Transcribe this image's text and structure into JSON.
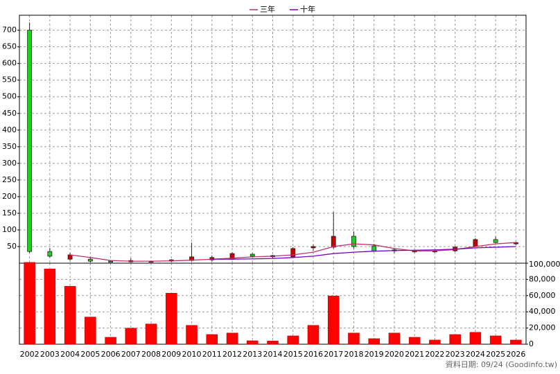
{
  "chart_data": [
    {
      "type": "candlestick",
      "categories": [
        "2002",
        "2003",
        "2004",
        "2005",
        "2006",
        "2007",
        "2008",
        "2009",
        "2010",
        "2011",
        "2012",
        "2013",
        "2014",
        "2015",
        "2016",
        "2017",
        "2018",
        "2019",
        "2020",
        "2021",
        "2022",
        "2023",
        "2024",
        "2025",
        "2026"
      ],
      "open": [
        700,
        35,
        12,
        12,
        6,
        4,
        5,
        6,
        8,
        10,
        12,
        27,
        19,
        19,
        46,
        48,
        81,
        52,
        37,
        35,
        35,
        37,
        50,
        71,
        58
      ],
      "high": [
        723,
        46,
        31,
        19,
        8,
        15,
        8,
        12,
        62,
        23,
        33,
        30,
        25,
        48,
        56,
        154,
        96,
        58,
        46,
        40,
        40,
        52,
        75,
        80,
        64
      ],
      "low": [
        31,
        17,
        8,
        2,
        3,
        2,
        3,
        4,
        6,
        6,
        10,
        19,
        16,
        16,
        37,
        44,
        44,
        34,
        30,
        32,
        32,
        34,
        48,
        60,
        55
      ],
      "close": [
        35,
        21,
        25,
        6,
        5,
        8,
        6,
        10,
        19,
        17,
        29,
        21,
        23,
        44,
        50,
        81,
        50,
        37,
        40,
        37,
        37,
        48,
        71,
        62,
        62
      ],
      "up_color": "#cc0000",
      "down_color": "#22cc22",
      "series": [
        {
          "name": "三年",
          "color": "#c0306a",
          "values": [
            null,
            null,
            25,
            17,
            8,
            6,
            6,
            7,
            9,
            12,
            15,
            19,
            21,
            25,
            33,
            50,
            58,
            55,
            44,
            37,
            37,
            41,
            50,
            58,
            62
          ]
        },
        {
          "name": "十年",
          "color": "#7a00c0",
          "values": [
            null,
            null,
            null,
            null,
            null,
            null,
            null,
            null,
            null,
            12,
            12,
            13,
            14,
            17,
            21,
            29,
            33,
            36,
            38,
            39,
            40,
            42,
            46,
            48,
            50
          ]
        }
      ],
      "ylim": [
        0,
        745
      ],
      "yticks": [
        50,
        100,
        150,
        200,
        250,
        300,
        350,
        400,
        450,
        500,
        550,
        600,
        650,
        700
      ],
      "grid": true,
      "legend": "top"
    },
    {
      "type": "bar",
      "values": [
        101000,
        93000,
        71500,
        33600,
        8600,
        19800,
        25000,
        63000,
        23300,
        12000,
        13800,
        4300,
        4000,
        10300,
        23300,
        59500,
        13800,
        6900,
        13800,
        8600,
        5200,
        12000,
        14700,
        10300,
        5200
      ],
      "color": "#ff0000",
      "ylim": [
        0,
        100000
      ],
      "yticks": [
        0,
        {
          "value": 20000,
          "label": "20,000"
        },
        {
          "value": 40000,
          "label": "40,000"
        },
        {
          "value": 60000,
          "label": "60,000"
        },
        {
          "value": 80000,
          "label": "80,000"
        },
        {
          "value": 100000,
          "label": "100,000"
        }
      ],
      "grid": true
    }
  ],
  "footer": "資料日期: 09/24  (Goodinfo.tw)"
}
